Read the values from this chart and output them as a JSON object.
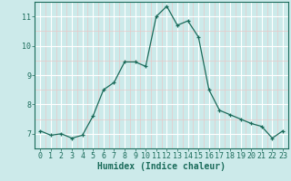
{
  "x": [
    0,
    1,
    2,
    3,
    4,
    5,
    6,
    7,
    8,
    9,
    10,
    11,
    12,
    13,
    14,
    15,
    16,
    17,
    18,
    19,
    20,
    21,
    22,
    23
  ],
  "y": [
    7.1,
    6.95,
    7.0,
    6.85,
    6.95,
    7.6,
    8.5,
    8.75,
    9.45,
    9.45,
    9.3,
    11.0,
    11.35,
    10.7,
    10.85,
    10.3,
    8.5,
    7.8,
    7.65,
    7.5,
    7.35,
    7.25,
    6.85,
    7.1
  ],
  "xlabel": "Humidex (Indice chaleur)",
  "xlim": [
    -0.5,
    23.5
  ],
  "ylim": [
    6.5,
    11.5
  ],
  "yticks": [
    7,
    8,
    9,
    10,
    11
  ],
  "xticks": [
    0,
    1,
    2,
    3,
    4,
    5,
    6,
    7,
    8,
    9,
    10,
    11,
    12,
    13,
    14,
    15,
    16,
    17,
    18,
    19,
    20,
    21,
    22,
    23
  ],
  "line_color": "#1a6b5a",
  "marker": "+",
  "bg_color": "#cceaea",
  "grid_major_color": "#ffffff",
  "grid_minor_color": "#e8c8c8"
}
